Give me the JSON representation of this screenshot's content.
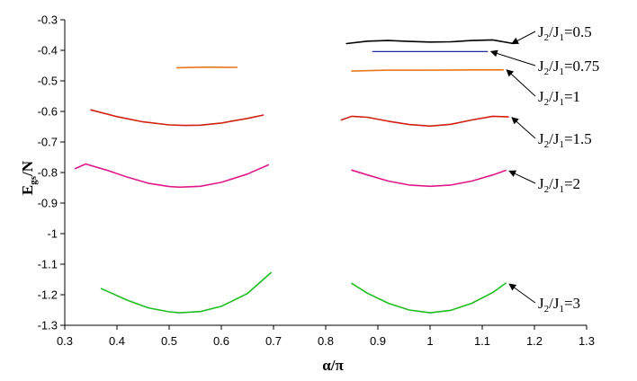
{
  "chart_data": {
    "type": "line",
    "title": "",
    "xlabel": "α/π",
    "ylabel": {
      "main": "E",
      "sub": "gs",
      "suffix": "/N"
    },
    "xlim": [
      0.3,
      1.3
    ],
    "ylim": [
      -1.3,
      -0.3
    ],
    "xticks": [
      "0.3",
      "0.4",
      "0.5",
      "0.6",
      "0.7",
      "0.8",
      "0.9",
      "1",
      "1.1",
      "1.2",
      "1.3"
    ],
    "yticks": [
      "-0.3",
      "-0.4",
      "-0.5",
      "-0.6",
      "-0.7",
      "-0.8",
      "-0.9",
      "-1",
      "-1.1",
      "-1.2",
      "-1.3"
    ],
    "grid": false,
    "legend": "none",
    "series": [
      {
        "key": "j05",
        "color": "#000000",
        "segments": [
          [
            [
              0.84,
              -0.378
            ],
            [
              0.88,
              -0.37
            ],
            [
              0.92,
              -0.368
            ],
            [
              0.96,
              -0.371
            ],
            [
              1.0,
              -0.373
            ],
            [
              1.04,
              -0.372
            ],
            [
              1.08,
              -0.368
            ],
            [
              1.12,
              -0.366
            ],
            [
              1.16,
              -0.378
            ]
          ]
        ]
      },
      {
        "key": "j075",
        "color": "#1f2fa0",
        "segments": [
          [
            [
              0.89,
              -0.404
            ],
            [
              1.11,
              -0.404
            ]
          ]
        ]
      },
      {
        "key": "j1",
        "color": "#e8761a",
        "segments": [
          [
            [
              0.515,
              -0.457
            ],
            [
              0.57,
              -0.455
            ],
            [
              0.63,
              -0.456
            ]
          ],
          [
            [
              0.85,
              -0.468
            ],
            [
              0.92,
              -0.465
            ],
            [
              1.0,
              -0.465
            ],
            [
              1.08,
              -0.464
            ],
            [
              1.14,
              -0.464
            ]
          ]
        ]
      },
      {
        "key": "j15",
        "color": "#d11f10",
        "segments": [
          [
            [
              0.35,
              -0.595
            ],
            [
              0.4,
              -0.617
            ],
            [
              0.45,
              -0.634
            ],
            [
              0.5,
              -0.644
            ],
            [
              0.53,
              -0.646
            ],
            [
              0.56,
              -0.645
            ],
            [
              0.6,
              -0.638
            ],
            [
              0.65,
              -0.623
            ],
            [
              0.68,
              -0.612
            ]
          ],
          [
            [
              0.83,
              -0.628
            ],
            [
              0.85,
              -0.616
            ],
            [
              0.88,
              -0.619
            ],
            [
              0.92,
              -0.632
            ],
            [
              0.96,
              -0.643
            ],
            [
              1.0,
              -0.648
            ],
            [
              1.04,
              -0.642
            ],
            [
              1.08,
              -0.628
            ],
            [
              1.12,
              -0.616
            ],
            [
              1.15,
              -0.618
            ]
          ]
        ]
      },
      {
        "key": "j2",
        "color": "#e0188a",
        "segments": [
          [
            [
              0.32,
              -0.787
            ],
            [
              0.34,
              -0.772
            ],
            [
              0.38,
              -0.792
            ],
            [
              0.42,
              -0.815
            ],
            [
              0.46,
              -0.835
            ],
            [
              0.5,
              -0.846
            ],
            [
              0.52,
              -0.848
            ],
            [
              0.56,
              -0.845
            ],
            [
              0.6,
              -0.832
            ],
            [
              0.65,
              -0.805
            ],
            [
              0.69,
              -0.775
            ]
          ],
          [
            [
              0.85,
              -0.792
            ],
            [
              0.88,
              -0.808
            ],
            [
              0.92,
              -0.828
            ],
            [
              0.96,
              -0.841
            ],
            [
              1.0,
              -0.845
            ],
            [
              1.04,
              -0.841
            ],
            [
              1.08,
              -0.828
            ],
            [
              1.12,
              -0.808
            ],
            [
              1.145,
              -0.793
            ]
          ]
        ]
      },
      {
        "key": "j3",
        "color": "#1fbe1f",
        "segments": [
          [
            [
              0.37,
              -1.18
            ],
            [
              0.42,
              -1.218
            ],
            [
              0.46,
              -1.243
            ],
            [
              0.5,
              -1.256
            ],
            [
              0.52,
              -1.259
            ],
            [
              0.56,
              -1.255
            ],
            [
              0.6,
              -1.238
            ],
            [
              0.65,
              -1.196
            ],
            [
              0.695,
              -1.128
            ]
          ],
          [
            [
              0.85,
              -1.163
            ],
            [
              0.88,
              -1.195
            ],
            [
              0.92,
              -1.228
            ],
            [
              0.96,
              -1.25
            ],
            [
              1.0,
              -1.259
            ],
            [
              1.04,
              -1.251
            ],
            [
              1.08,
              -1.228
            ],
            [
              1.12,
              -1.193
            ],
            [
              1.145,
              -1.162
            ]
          ]
        ]
      }
    ],
    "annotations": [
      {
        "key": "j05",
        "pre": "J",
        "sub1": "2",
        "mid": "/J",
        "sub2": "1",
        "value": "=0.5",
        "target": [
          1.15,
          -0.378
        ]
      },
      {
        "key": "j075",
        "pre": "J",
        "sub1": "2",
        "mid": "/J",
        "sub2": "1",
        "value": "=0.75",
        "target": [
          1.11,
          -0.404
        ]
      },
      {
        "key": "j1",
        "pre": "J",
        "sub1": "2",
        "mid": "/J",
        "sub2": "1",
        "value": "=1",
        "target": [
          1.14,
          -0.464
        ]
      },
      {
        "key": "j15",
        "pre": "J",
        "sub1": "2",
        "mid": "/J",
        "sub2": "1",
        "value": "=1.5",
        "target": [
          1.15,
          -0.62
        ]
      },
      {
        "key": "j2",
        "pre": "J",
        "sub1": "2",
        "mid": "/J",
        "sub2": "1",
        "value": "=2",
        "target": [
          1.145,
          -0.795
        ]
      },
      {
        "key": "j3",
        "pre": "J",
        "sub1": "2",
        "mid": "/J",
        "sub2": "1",
        "value": "=3",
        "target": [
          1.145,
          -1.165
        ]
      }
    ]
  }
}
